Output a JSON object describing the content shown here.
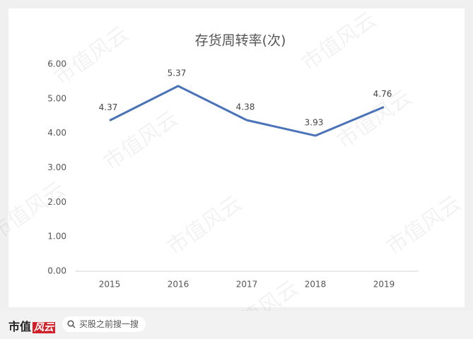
{
  "chart_data": {
    "type": "line",
    "title": "存货周转率(次)",
    "categories": [
      "2015",
      "2016",
      "2017",
      "2018",
      "2019"
    ],
    "series": [
      {
        "name": "存货周转率",
        "color": "#4a72b8",
        "values": [
          4.37,
          5.37,
          4.38,
          3.93,
          4.76
        ]
      }
    ],
    "ylim": [
      0,
      6
    ],
    "yticks": [
      {
        "value": 0,
        "label": "0.00"
      },
      {
        "value": 1,
        "label": "1.00"
      },
      {
        "value": 2,
        "label": "2.00"
      },
      {
        "value": 3,
        "label": "3.00"
      },
      {
        "value": 4,
        "label": "4.00"
      },
      {
        "value": 5,
        "label": "5.00"
      },
      {
        "value": 6,
        "label": "6.00"
      }
    ],
    "grid": false
  },
  "watermark": "市值风云",
  "footer": {
    "logo": "市值",
    "logo_accent": "风云",
    "search": "买股之前搜一搜"
  }
}
